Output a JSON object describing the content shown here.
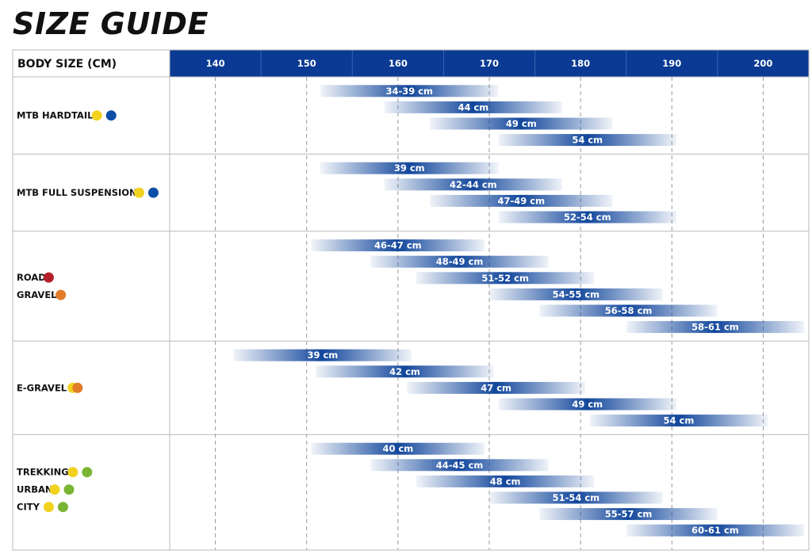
{
  "title": "SIZE GUIDE",
  "colors": {
    "header_blue": "#0a3a93",
    "bar_blue": "#12479c",
    "grid": "#9a9a9a",
    "border": "#b9b9b9",
    "yellow": "#f2d21e",
    "blue_dot": "#0d4ea6",
    "red": "#b4202a",
    "orange": "#e07b28",
    "green": "#79b532"
  },
  "chart_data": {
    "type": "bar",
    "orientation": "horizontal-range",
    "header_label": "BODY SIZE (CM)",
    "x_ticks": [
      "140",
      "150",
      "160",
      "170",
      "180",
      "190",
      "200"
    ],
    "xlim": [
      135,
      205
    ],
    "groups": [
      {
        "labels": [
          {
            "text": "MTB HARDTAIL",
            "dots": [
              "yellow",
              "blue_dot"
            ]
          }
        ],
        "bars": [
          {
            "label": "34-39 cm",
            "start": 151.5,
            "end": 171.0
          },
          {
            "label": "44 cm",
            "start": 158.5,
            "end": 178.0
          },
          {
            "label": "49 cm",
            "start": 163.5,
            "end": 183.5
          },
          {
            "label": "54 cm",
            "start": 171.0,
            "end": 190.5
          }
        ]
      },
      {
        "labels": [
          {
            "text": "MTB FULL SUSPENSION",
            "dots": [
              "yellow",
              "blue_dot"
            ]
          }
        ],
        "bars": [
          {
            "label": "39 cm",
            "start": 151.5,
            "end": 171.0
          },
          {
            "label": "42-44 cm",
            "start": 158.5,
            "end": 178.0
          },
          {
            "label": "47-49 cm",
            "start": 163.5,
            "end": 183.5
          },
          {
            "label": "52-54 cm",
            "start": 171.0,
            "end": 190.5
          }
        ]
      },
      {
        "labels": [
          {
            "text": "ROAD",
            "dots": [
              "red"
            ]
          },
          {
            "text": "GRAVEL",
            "dots": [
              "orange"
            ]
          }
        ],
        "bars": [
          {
            "label": "46-47 cm",
            "start": 150.5,
            "end": 169.5
          },
          {
            "label": "48-49 cm",
            "start": 157.0,
            "end": 176.5
          },
          {
            "label": "51-52 cm",
            "start": 162.0,
            "end": 181.5
          },
          {
            "label": "54-55 cm",
            "start": 170.0,
            "end": 189.0
          },
          {
            "label": "56-58 cm",
            "start": 175.5,
            "end": 195.0
          },
          {
            "label": "58-61 cm",
            "start": 185.0,
            "end": 204.5
          }
        ]
      },
      {
        "labels": [
          {
            "text": "E-GRAVEL",
            "dots": [
              "yellow",
              "orange"
            ],
            "overlap": true
          }
        ],
        "bars": [
          {
            "label": "39 cm",
            "start": 142.0,
            "end": 161.5
          },
          {
            "label": "42 cm",
            "start": 151.0,
            "end": 170.5
          },
          {
            "label": "47 cm",
            "start": 161.0,
            "end": 180.5
          },
          {
            "label": "49 cm",
            "start": 171.0,
            "end": 190.5
          },
          {
            "label": "54 cm",
            "start": 181.0,
            "end": 200.5
          }
        ]
      },
      {
        "labels": [
          {
            "text": "TREKKING",
            "dots": [
              "yellow",
              "green"
            ]
          },
          {
            "text": "URBAN",
            "dots": [
              "yellow",
              "green"
            ]
          },
          {
            "text": "CITY",
            "dots": [
              "yellow",
              "green"
            ]
          }
        ],
        "bars": [
          {
            "label": "40 cm",
            "start": 150.5,
            "end": 169.5
          },
          {
            "label": "44-45 cm",
            "start": 157.0,
            "end": 176.5
          },
          {
            "label": "48 cm",
            "start": 162.0,
            "end": 181.5
          },
          {
            "label": "51-54 cm",
            "start": 170.0,
            "end": 189.0
          },
          {
            "label": "55-57 cm",
            "start": 175.5,
            "end": 195.0
          },
          {
            "label": "60-61 cm",
            "start": 185.0,
            "end": 204.5
          }
        ]
      }
    ]
  }
}
